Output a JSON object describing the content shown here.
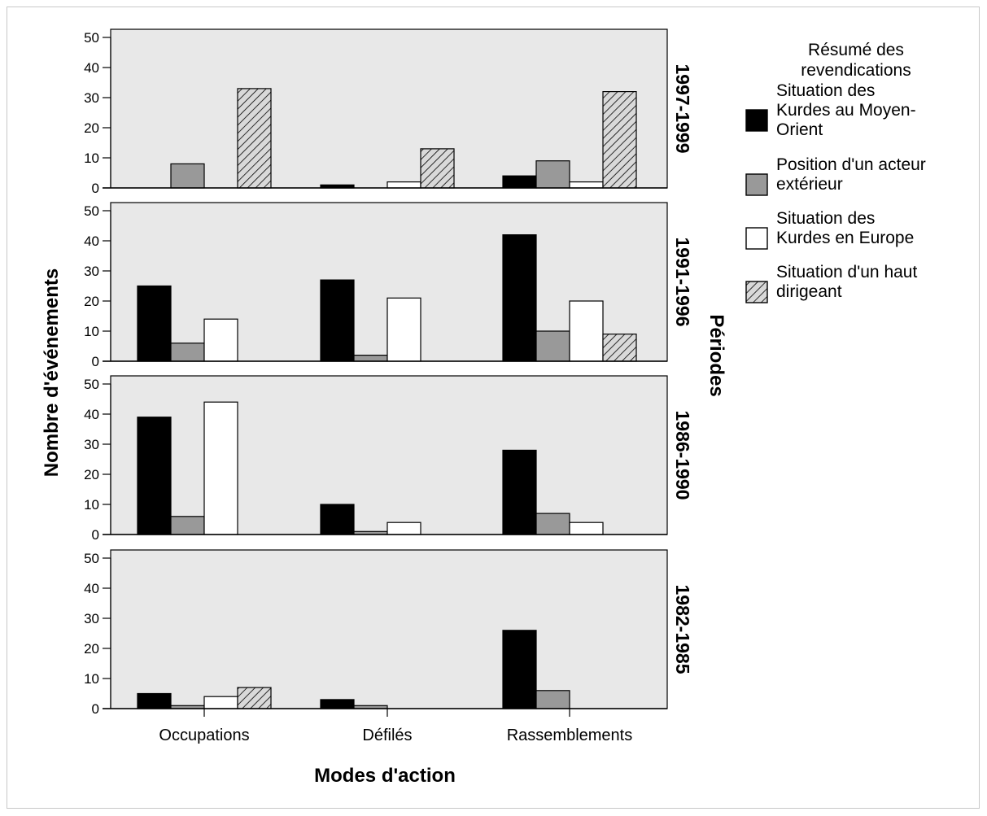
{
  "chart_data": {
    "type": "bar",
    "xlabel": "Modes d'action",
    "ylabel": "Nombre d'événements",
    "facet_label": "Périodes",
    "ylim": [
      0,
      50
    ],
    "yticks": [
      0,
      10,
      20,
      30,
      40,
      50
    ],
    "categories": [
      "Occupations",
      "Défilés",
      "Rassemblements"
    ],
    "legend": {
      "title": "Résumé des revendications",
      "placement": "right",
      "entries": [
        {
          "label": "Situation des Kurdes au Moyen-Orient",
          "color": "#000000",
          "pattern": "solid"
        },
        {
          "label": "Position d'un acteur extérieur",
          "color": "#999999",
          "pattern": "solid"
        },
        {
          "label": "Situation des Kurdes en Europe",
          "color": "#ffffff",
          "pattern": "solid"
        },
        {
          "label": "Situation d'un haut dirigeant",
          "color": "#d9d9d9",
          "pattern": "hatched"
        }
      ]
    },
    "panels": [
      {
        "period": "1997-1999",
        "series": [
          {
            "name": "Situation des Kurdes au Moyen-Orient",
            "values": [
              0,
              1,
              4
            ]
          },
          {
            "name": "Position d'un acteur extérieur",
            "values": [
              8,
              0,
              9
            ]
          },
          {
            "name": "Situation des Kurdes en Europe",
            "values": [
              0,
              2,
              2
            ]
          },
          {
            "name": "Situation d'un haut dirigeant",
            "values": [
              33,
              13,
              32
            ]
          }
        ]
      },
      {
        "period": "1991-1996",
        "series": [
          {
            "name": "Situation des Kurdes au Moyen-Orient",
            "values": [
              25,
              27,
              42
            ]
          },
          {
            "name": "Position d'un acteur extérieur",
            "values": [
              6,
              2,
              10
            ]
          },
          {
            "name": "Situation des Kurdes en Europe",
            "values": [
              14,
              21,
              20
            ]
          },
          {
            "name": "Situation d'un haut dirigeant",
            "values": [
              0,
              0,
              9
            ]
          }
        ]
      },
      {
        "period": "1986-1990",
        "series": [
          {
            "name": "Situation des Kurdes au Moyen-Orient",
            "values": [
              39,
              10,
              28
            ]
          },
          {
            "name": "Position d'un acteur extérieur",
            "values": [
              6,
              1,
              7
            ]
          },
          {
            "name": "Situation des Kurdes en Europe",
            "values": [
              44,
              4,
              4
            ]
          },
          {
            "name": "Situation d'un haut dirigeant",
            "values": [
              0,
              0,
              0
            ]
          }
        ]
      },
      {
        "period": "1982-1985",
        "series": [
          {
            "name": "Situation des Kurdes au Moyen-Orient",
            "values": [
              5,
              3,
              26
            ]
          },
          {
            "name": "Position d'un acteur extérieur",
            "values": [
              1,
              1,
              6
            ]
          },
          {
            "name": "Situation des Kurdes en Europe",
            "values": [
              4,
              0,
              0
            ]
          },
          {
            "name": "Situation d'un haut dirigeant",
            "values": [
              7,
              0,
              0
            ]
          }
        ]
      }
    ]
  }
}
